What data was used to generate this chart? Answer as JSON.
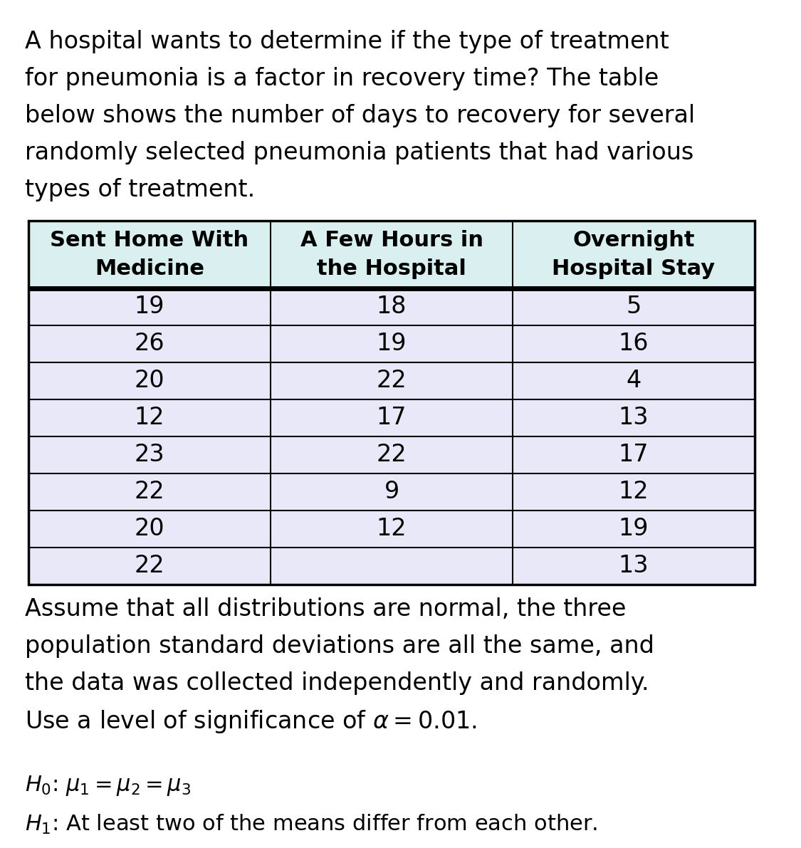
{
  "intro_text": "A hospital wants to determine if the type of treatment\nfor pneumonia is a factor in recovery time? The table\nbelow shows the number of days to recovery for several\nrandomly selected pneumonia patients that had various\ntypes of treatment.",
  "col_headers": [
    "Sent Home With\nMedicine",
    "A Few Hours in\nthe Hospital",
    "Overnight\nHospital Stay"
  ],
  "table_data": [
    [
      "19",
      "18",
      "5"
    ],
    [
      "26",
      "19",
      "16"
    ],
    [
      "20",
      "22",
      "4"
    ],
    [
      "12",
      "17",
      "13"
    ],
    [
      "23",
      "22",
      "17"
    ],
    [
      "22",
      "9",
      "12"
    ],
    [
      "20",
      "12",
      "19"
    ],
    [
      "22",
      "",
      "13"
    ]
  ],
  "assume_text": "Assume that all distributions are normal, the three\npopulation standard deviations are all the same, and\nthe data was collected independently and randomly.\nUse a level of significance of $\\alpha = 0.01$.",
  "h0_text": "$H_0$: $\\mu_1 = \\mu_2 = \\mu_3$",
  "h1_text": "$H_1$: At least two of the means differ from each other.",
  "header_bg": "#daf0f0",
  "row_bg": "#e8e8f8",
  "border_color": "#000000",
  "text_color": "#000000",
  "bg_color": "#ffffff",
  "intro_fontsize": 24,
  "header_fontsize": 22,
  "data_fontsize": 24,
  "body_fontsize": 24,
  "hyp_fontsize": 22
}
